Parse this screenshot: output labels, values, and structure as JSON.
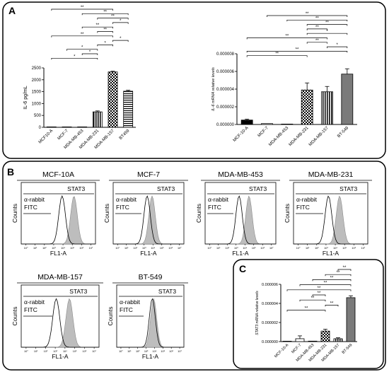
{
  "panel_labels": {
    "A": "A",
    "B": "B",
    "C": "C"
  },
  "chart_data": [
    {
      "id": "il6-elisa",
      "type": "bar",
      "ylabel": "IL-6 pg/mL",
      "ylim": [
        0,
        2500
      ],
      "yticks": [
        0,
        500,
        1000,
        1500,
        2000,
        2500
      ],
      "categories": [
        "MCF10-A",
        "MCF-7",
        "MDA-MB-453",
        "MDA-MB-231",
        "MDA-MB-157",
        "BT459"
      ],
      "values": [
        0,
        0,
        0,
        650,
        2330,
        1520
      ],
      "errors": [
        0,
        0,
        0,
        40,
        30,
        40
      ],
      "fills": [
        "#ffffff",
        "#ffffff",
        "#ffffff",
        "vstripe",
        "checker",
        "hstripe"
      ],
      "significance": [
        {
          "a": 0,
          "b": 4,
          "label": "**"
        },
        {
          "a": 2,
          "b": 5,
          "label": "**"
        },
        {
          "a": 3,
          "b": 5,
          "label": "**"
        },
        {
          "a": 4,
          "b": 5,
          "label": "*"
        },
        {
          "a": 2,
          "b": 4,
          "label": "**"
        },
        {
          "a": 3,
          "b": 4,
          "label": "**"
        },
        {
          "a": 0,
          "b": 4,
          "label": "**"
        },
        {
          "a": 4,
          "b": 5,
          "label": "*"
        },
        {
          "a": 3,
          "b": 4,
          "label": "*"
        },
        {
          "a": 1,
          "b": 3,
          "label": "*"
        },
        {
          "a": 2,
          "b": 3,
          "label": "*"
        },
        {
          "a": 0,
          "b": 3,
          "label": "*"
        }
      ]
    },
    {
      "id": "il6-mrna",
      "type": "bar",
      "ylabel": "IL-6 mRNA relative levels",
      "ylim": [
        0,
        8e-06
      ],
      "yticks": [
        0,
        2e-06,
        4e-06,
        6e-06,
        8e-06
      ],
      "ytick_labels": [
        "0.000000",
        "0.000002",
        "0.000004",
        "0.000006",
        "0.000008"
      ],
      "categories": [
        "MCF-10-A",
        "MCF-7",
        "MDA-MB-453",
        "MDA-MB-231",
        "MDA-MB-157",
        "BT-549"
      ],
      "values": [
        5e-07,
        1e-07,
        1e-08,
        3.9e-06,
        3.7e-06,
        5.7e-06
      ],
      "errors": [
        1e-07,
        0,
        0,
        8e-07,
        6e-07,
        6e-07
      ],
      "fills": [
        "#000000",
        "#ffffff",
        "#c8c8c8",
        "checker",
        "vstripe",
        "#7a7a7a"
      ],
      "significance": [
        {
          "a": 1,
          "b": 5,
          "label": "**"
        },
        {
          "a": 2,
          "b": 5,
          "label": "**"
        },
        {
          "a": 3,
          "b": 5,
          "label": "**"
        },
        {
          "a": 3,
          "b": 4,
          "label": "**"
        },
        {
          "a": 3,
          "b": 5,
          "label": "*"
        },
        {
          "a": 0,
          "b": 4,
          "label": "**"
        },
        {
          "a": 3,
          "b": 4,
          "label": "**"
        },
        {
          "a": 4,
          "b": 5,
          "label": "*"
        },
        {
          "a": 0,
          "b": 5,
          "label": "**"
        },
        {
          "a": 0,
          "b": 3,
          "label": "**"
        }
      ]
    },
    {
      "id": "stat3-mrna",
      "type": "bar",
      "ylabel": "STAT3 mRNA relative levels",
      "ylim": [
        0,
        6e-06
      ],
      "yticks": [
        0,
        2e-06,
        4e-06,
        6e-06
      ],
      "ytick_labels": [
        "0.000000",
        "0.000002",
        "0.000004",
        "0.000006"
      ],
      "categories": [
        "MCF-10-A",
        "MCF-7",
        "MDA-MB-453",
        "MDA-MB-231",
        "MDA-MB-157",
        "BT-549"
      ],
      "values": [
        2e-08,
        3e-07,
        5e-08,
        1.1e-06,
        3e-07,
        4.6e-06
      ],
      "errors": [
        0,
        3e-07,
        0,
        2e-07,
        1e-07,
        2e-07
      ],
      "fills": [
        "#000000",
        "#ffffff",
        "#c8c8c8",
        "checker",
        "vstripe",
        "#7a7a7a"
      ],
      "significance": [
        {
          "a": 4,
          "b": 5,
          "label": "**"
        },
        {
          "a": 3,
          "b": 5,
          "label": "**"
        },
        {
          "a": 2,
          "b": 5,
          "label": "**"
        },
        {
          "a": 1,
          "b": 5,
          "label": "**"
        },
        {
          "a": 0,
          "b": 5,
          "label": "**"
        },
        {
          "a": 2,
          "b": 3,
          "label": "**"
        },
        {
          "a": 1,
          "b": 3,
          "label": "**"
        },
        {
          "a": 3,
          "b": 4,
          "label": "**"
        },
        {
          "a": 0,
          "b": 3,
          "label": "**"
        }
      ]
    }
  ],
  "flow_panels": {
    "xlabel": "FL1-A",
    "ylabel": "Counts",
    "control_label": "α-rabbit FITC",
    "stain_label": "STAT3",
    "x_ticks": [
      "10⁰",
      "10¹",
      "10²",
      "10³",
      "10⁴",
      "10⁵",
      "10⁶",
      "10⁷"
    ],
    "panels": [
      {
        "title": "MCF-10A",
        "control_peak": 0.55,
        "stain_peak": 0.71
      },
      {
        "title": "MCF-7",
        "control_peak": 0.48,
        "stain_peak": 0.55
      },
      {
        "title": "MDA-MB-453",
        "control_peak": 0.48,
        "stain_peak": 0.62
      },
      {
        "title": "MDA-MB-231",
        "control_peak": 0.47,
        "stain_peak": 0.62
      },
      {
        "title": "MDA-MB-157",
        "control_peak": 0.45,
        "stain_peak": 0.62
      },
      {
        "title": "BT-549",
        "control_peak": 0.53,
        "stain_peak": 0.55
      }
    ]
  }
}
